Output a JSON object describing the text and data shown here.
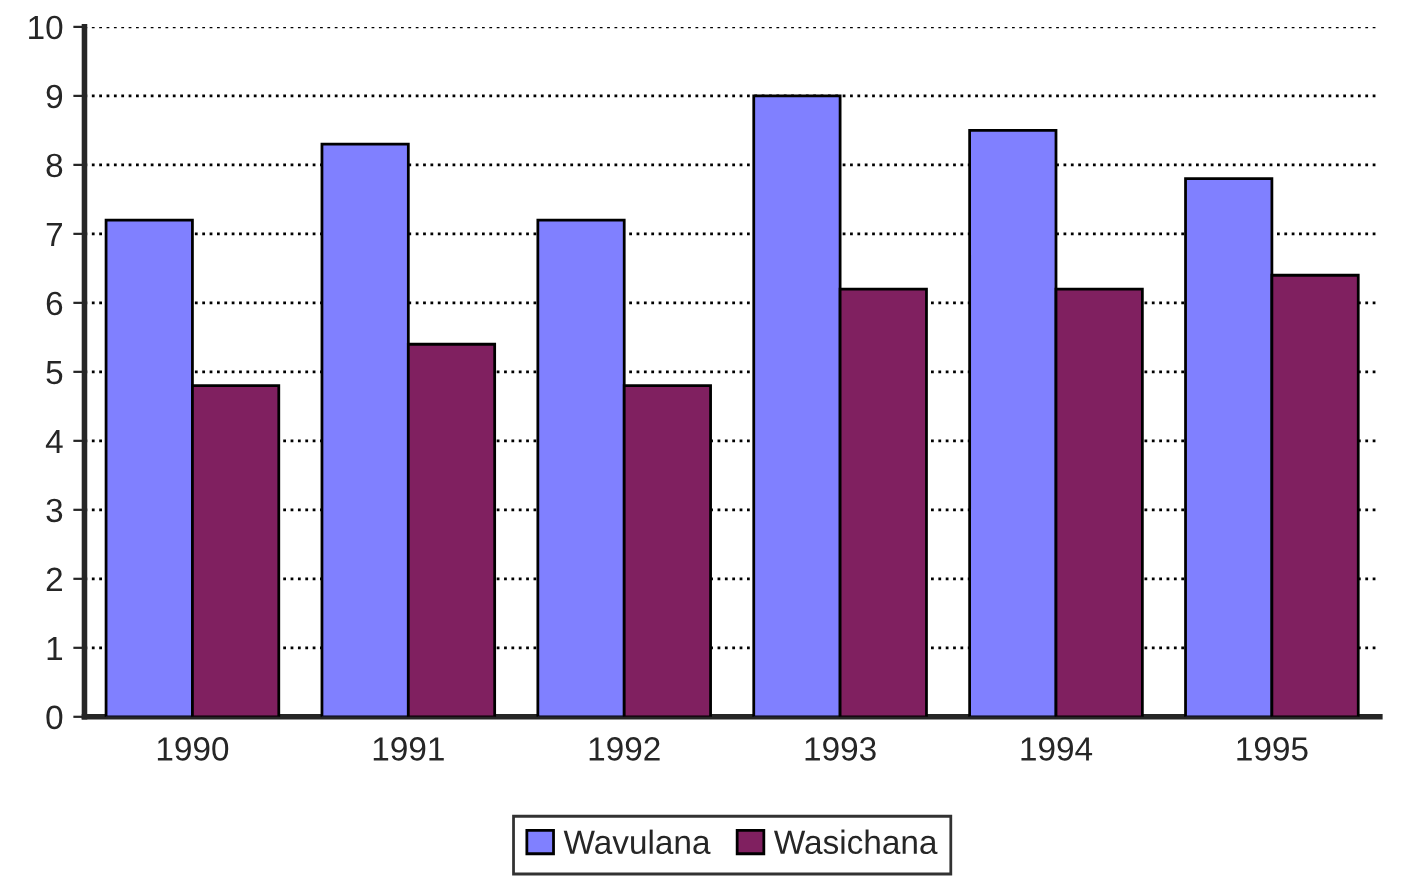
{
  "chart_data": {
    "type": "bar",
    "categories": [
      "1990",
      "1991",
      "1992",
      "1993",
      "1994",
      "1995"
    ],
    "series": [
      {
        "name": "Wavulana",
        "color": "#8080ff",
        "values": [
          7.2,
          8.3,
          7.2,
          9.0,
          8.5,
          7.8
        ]
      },
      {
        "name": "Wasichana",
        "color": "#802060",
        "values": [
          4.8,
          5.4,
          4.8,
          6.2,
          6.2,
          6.4
        ]
      }
    ],
    "ylim": [
      0,
      10
    ],
    "yticks": [
      0,
      1,
      2,
      3,
      4,
      5,
      6,
      7,
      8,
      9,
      10
    ],
    "grid": "y",
    "legend": "bottom"
  }
}
